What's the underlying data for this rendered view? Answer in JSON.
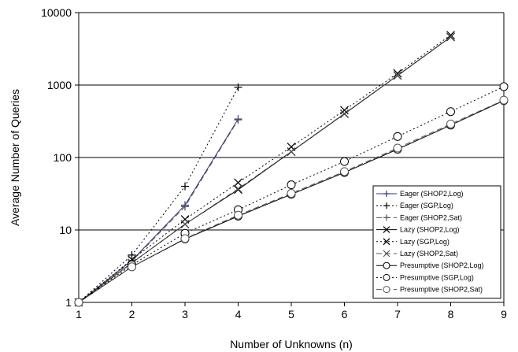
{
  "chart_data": {
    "type": "line",
    "title": "",
    "xlabel": "Number of Unknowns (n)",
    "ylabel": "Average Number of Queries",
    "x_ticks": [
      1,
      2,
      3,
      4,
      5,
      6,
      7,
      8,
      9
    ],
    "y_ticks": [
      1,
      10,
      100,
      1000,
      10000
    ],
    "y_tick_labels": [
      "1",
      "10",
      "100",
      "1000",
      "10000"
    ],
    "xlim": [
      1,
      9
    ],
    "ylim": [
      1,
      10000
    ],
    "yscale": "log",
    "grid": "horizontal major lines",
    "legend_position": "bottom-right",
    "series": [
      {
        "name": "Eager (SHOP2,Log)",
        "marker": "plus",
        "line": "solid",
        "color": "#2e3580",
        "points": [
          [
            1,
            1
          ],
          [
            2,
            3.8
          ],
          [
            3,
            22
          ],
          [
            4,
            340
          ]
        ]
      },
      {
        "name": "Eager (SGP,Log)",
        "marker": "plus",
        "line": "dotted",
        "color": "#000000",
        "points": [
          [
            1,
            1
          ],
          [
            2,
            4.5
          ],
          [
            3,
            40
          ],
          [
            4,
            930
          ]
        ]
      },
      {
        "name": "Eager (SHOP2,Sat)",
        "marker": "plus",
        "line": "dashed",
        "color": "#555555",
        "points": [
          [
            1,
            1
          ],
          [
            2,
            3.7
          ],
          [
            3,
            21
          ],
          [
            4,
            330
          ]
        ]
      },
      {
        "name": "Lazy (SHOP2,Log)",
        "marker": "x",
        "line": "solid",
        "color": "#000000",
        "points": [
          [
            1,
            1
          ],
          [
            2,
            3.5
          ],
          [
            3,
            12
          ],
          [
            4,
            36
          ],
          [
            5,
            120
          ],
          [
            6,
            400
          ],
          [
            7,
            1350
          ],
          [
            8,
            4600
          ]
        ]
      },
      {
        "name": "Lazy (SGP,Log)",
        "marker": "x",
        "line": "dotted",
        "color": "#000000",
        "points": [
          [
            1,
            1
          ],
          [
            2,
            3.9
          ],
          [
            3,
            14
          ],
          [
            4,
            45
          ],
          [
            5,
            140
          ],
          [
            6,
            450
          ],
          [
            7,
            1450
          ],
          [
            8,
            4900
          ]
        ]
      },
      {
        "name": "Lazy (SHOP2,Sat)",
        "marker": "x",
        "line": "dashed",
        "color": "#555555",
        "points": [
          [
            1,
            1
          ],
          [
            2,
            3.5
          ],
          [
            3,
            12
          ],
          [
            4,
            37
          ],
          [
            5,
            121
          ],
          [
            6,
            405
          ],
          [
            7,
            1360
          ],
          [
            8,
            4650
          ]
        ]
      },
      {
        "name": "Presumptive (SHOP2,Log)",
        "marker": "circle",
        "line": "solid",
        "color": "#000000",
        "points": [
          [
            1,
            1
          ],
          [
            2,
            3.1
          ],
          [
            3,
            7.5
          ],
          [
            4,
            15.5
          ],
          [
            5,
            31
          ],
          [
            6,
            62
          ],
          [
            7,
            130
          ],
          [
            8,
            280
          ],
          [
            9,
            610
          ]
        ]
      },
      {
        "name": "Presumptive (SGP,Log)",
        "marker": "circle",
        "line": "dotted",
        "color": "#000000",
        "points": [
          [
            1,
            1
          ],
          [
            2,
            3.3
          ],
          [
            3,
            9
          ],
          [
            4,
            19
          ],
          [
            5,
            42
          ],
          [
            6,
            88
          ],
          [
            7,
            195
          ],
          [
            8,
            430
          ],
          [
            9,
            950
          ]
        ]
      },
      {
        "name": "Presumptive (SHOP2,Sat)",
        "marker": "circle",
        "line": "dashed",
        "color": "#555555",
        "points": [
          [
            1,
            1
          ],
          [
            2,
            3.1
          ],
          [
            3,
            7.6
          ],
          [
            4,
            16
          ],
          [
            5,
            32
          ],
          [
            6,
            64
          ],
          [
            7,
            135
          ],
          [
            8,
            290
          ],
          [
            9,
            620
          ]
        ]
      }
    ]
  }
}
